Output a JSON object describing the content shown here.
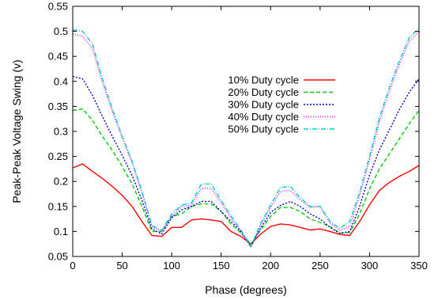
{
  "chart_data": {
    "type": "line",
    "title": "",
    "xlabel": "Phase (degrees)",
    "ylabel": "Peak-Peak Voltage Swing (v)",
    "xlim": [
      0,
      350
    ],
    "ylim": [
      0.05,
      0.55
    ],
    "xticks": [
      "0",
      "50",
      "100",
      "150",
      "200",
      "250",
      "300",
      "350"
    ],
    "yticks": [
      "0.05",
      "0.1",
      "0.15",
      "0.2",
      "0.25",
      "0.3",
      "0.35",
      "0.4",
      "0.45",
      "0.5",
      "0.55"
    ],
    "grid": false,
    "legend_position": "center",
    "x": [
      0,
      10,
      20,
      30,
      40,
      50,
      60,
      70,
      80,
      90,
      100,
      110,
      120,
      130,
      140,
      150,
      160,
      170,
      180,
      190,
      200,
      210,
      220,
      230,
      240,
      250,
      260,
      270,
      280,
      290,
      300,
      310,
      320,
      330,
      340,
      350
    ],
    "series": [
      {
        "name": "10% Duty cycle",
        "color": "#ff0000",
        "dash": "",
        "values": [
          0.227,
          0.235,
          0.22,
          0.206,
          0.19,
          0.172,
          0.15,
          0.12,
          0.092,
          0.09,
          0.108,
          0.108,
          0.123,
          0.125,
          0.123,
          0.12,
          0.1,
          0.09,
          0.075,
          0.095,
          0.11,
          0.115,
          0.113,
          0.108,
          0.103,
          0.105,
          0.1,
          0.094,
          0.092,
          0.12,
          0.153,
          0.182,
          0.198,
          0.21,
          0.22,
          0.232
        ]
      },
      {
        "name": "20% Duty cycle",
        "color": "#00cc00",
        "dash": "5,3",
        "values": [
          0.342,
          0.345,
          0.322,
          0.29,
          0.262,
          0.23,
          0.195,
          0.15,
          0.1,
          0.1,
          0.13,
          0.135,
          0.15,
          0.155,
          0.155,
          0.14,
          0.115,
          0.097,
          0.075,
          0.103,
          0.13,
          0.148,
          0.148,
          0.14,
          0.125,
          0.118,
          0.11,
          0.097,
          0.098,
          0.135,
          0.185,
          0.225,
          0.255,
          0.285,
          0.315,
          0.342
        ]
      },
      {
        "name": "30% Duty cycle",
        "color": "#0000cc",
        "dash": "2,2",
        "values": [
          0.41,
          0.405,
          0.372,
          0.33,
          0.29,
          0.252,
          0.212,
          0.162,
          0.105,
          0.095,
          0.127,
          0.143,
          0.15,
          0.16,
          0.16,
          0.14,
          0.12,
          0.1,
          0.07,
          0.107,
          0.138,
          0.152,
          0.16,
          0.15,
          0.135,
          0.125,
          0.108,
          0.096,
          0.1,
          0.15,
          0.213,
          0.263,
          0.303,
          0.343,
          0.378,
          0.405
        ]
      },
      {
        "name": "40% Duty cycle",
        "color": "#ff00ff",
        "dash": "1,2",
        "values": [
          0.495,
          0.49,
          0.465,
          0.398,
          0.34,
          0.287,
          0.237,
          0.177,
          0.11,
          0.1,
          0.13,
          0.15,
          0.152,
          0.186,
          0.186,
          0.157,
          0.127,
          0.1,
          0.068,
          0.113,
          0.148,
          0.18,
          0.182,
          0.163,
          0.148,
          0.15,
          0.117,
          0.102,
          0.11,
          0.172,
          0.243,
          0.32,
          0.38,
          0.433,
          0.48,
          0.5
        ]
      },
      {
        "name": "50% Duty cycle",
        "color": "#00cccc",
        "dash": "6,2,1,2",
        "values": [
          0.503,
          0.5,
          0.475,
          0.405,
          0.345,
          0.29,
          0.24,
          0.18,
          0.112,
          0.102,
          0.135,
          0.153,
          0.157,
          0.195,
          0.195,
          0.162,
          0.131,
          0.103,
          0.07,
          0.116,
          0.153,
          0.188,
          0.19,
          0.167,
          0.15,
          0.15,
          0.12,
          0.106,
          0.12,
          0.178,
          0.25,
          0.327,
          0.388,
          0.44,
          0.487,
          0.507
        ]
      }
    ]
  }
}
